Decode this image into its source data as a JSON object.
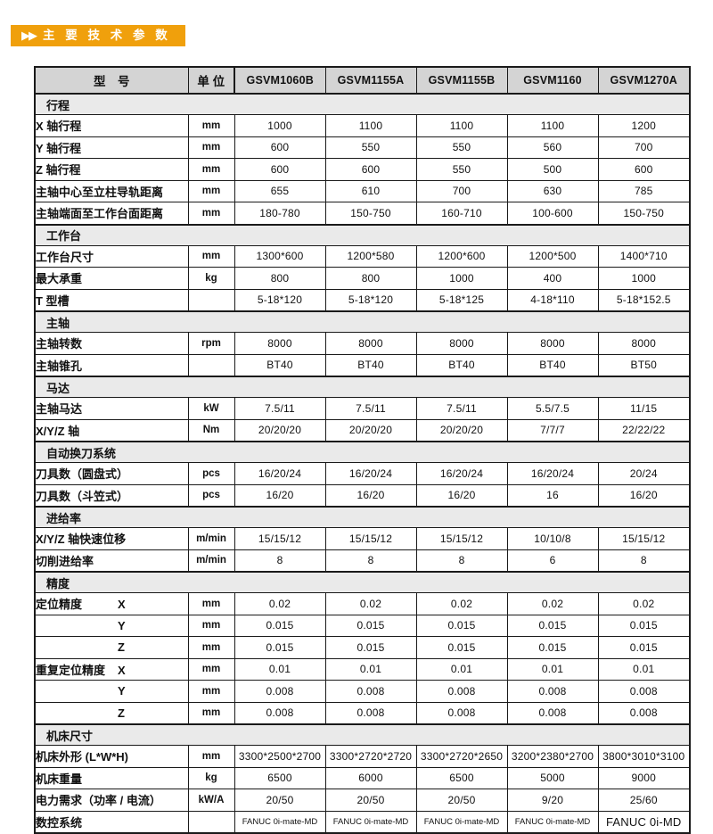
{
  "banner": {
    "arrows": "▶▶",
    "title": "主 要 技 术 参 数"
  },
  "colors": {
    "banner_bg": "#F0A00C",
    "banner_text": "#FFFFFF",
    "header_row_bg": "#D4D4D4",
    "section_row_bg": "#EAEAEA",
    "border": "#1A1A1A"
  },
  "table": {
    "header": {
      "model_label": "型　号",
      "unit_label": "单 位",
      "models": [
        "GSVM1060B",
        "GSVM1155A",
        "GSVM1155B",
        "GSVM1160",
        "GSVM1270A"
      ]
    },
    "sections": [
      {
        "title": "行程",
        "rows": [
          {
            "label": "X 轴行程",
            "unit": "mm",
            "values": [
              "1000",
              "1100",
              "1100",
              "1100",
              "1200"
            ]
          },
          {
            "label": "Y 轴行程",
            "unit": "mm",
            "values": [
              "600",
              "550",
              "550",
              "560",
              "700"
            ]
          },
          {
            "label": "Z 轴行程",
            "unit": "mm",
            "values": [
              "600",
              "600",
              "550",
              "500",
              "600"
            ]
          },
          {
            "label": "主轴中心至立柱导轨距离",
            "unit": "mm",
            "values": [
              "655",
              "610",
              "700",
              "630",
              "785"
            ]
          },
          {
            "label": "主轴端面至工作台面距离",
            "unit": "mm",
            "values": [
              "180-780",
              "150-750",
              "160-710",
              "100-600",
              "150-750"
            ]
          }
        ]
      },
      {
        "title": "工作台",
        "rows": [
          {
            "label": "工作台尺寸",
            "unit": "mm",
            "values": [
              "1300*600",
              "1200*580",
              "1200*600",
              "1200*500",
              "1400*710"
            ]
          },
          {
            "label": "最大承重",
            "unit": "kg",
            "values": [
              "800",
              "800",
              "1000",
              "400",
              "1000"
            ]
          },
          {
            "label": "T 型槽",
            "unit": "",
            "values": [
              "5-18*120",
              "5-18*120",
              "5-18*125",
              "4-18*110",
              "5-18*152.5"
            ]
          }
        ]
      },
      {
        "title": "主轴",
        "rows": [
          {
            "label": "主轴转数",
            "unit": "rpm",
            "values": [
              "8000",
              "8000",
              "8000",
              "8000",
              "8000"
            ]
          },
          {
            "label": "主轴锥孔",
            "unit": "",
            "values": [
              "BT40",
              "BT40",
              "BT40",
              "BT40",
              "BT50"
            ]
          }
        ]
      },
      {
        "title": "马达",
        "rows": [
          {
            "label": "主轴马达",
            "unit": "kW",
            "values": [
              "7.5/11",
              "7.5/11",
              "7.5/11",
              "5.5/7.5",
              "11/15"
            ]
          },
          {
            "label": "X/Y/Z 轴",
            "unit": "Nm",
            "values": [
              "20/20/20",
              "20/20/20",
              "20/20/20",
              "7/7/7",
              "22/22/22"
            ]
          }
        ]
      },
      {
        "title": "自动换刀系统",
        "rows": [
          {
            "label": "刀具数（圆盘式）",
            "unit": "pcs",
            "values": [
              "16/20/24",
              "16/20/24",
              "16/20/24",
              "16/20/24",
              "20/24"
            ]
          },
          {
            "label": "刀具数（斗笠式）",
            "unit": "pcs",
            "values": [
              "16/20",
              "16/20",
              "16/20",
              "16",
              "16/20"
            ]
          }
        ]
      },
      {
        "title": "进给率",
        "rows": [
          {
            "label": "X/Y/Z 轴快速位移",
            "unit": "m/min",
            "values": [
              "15/15/12",
              "15/15/12",
              "15/15/12",
              "10/10/8",
              "15/15/12"
            ]
          },
          {
            "label": "切削进给率",
            "unit": "m/min",
            "values": [
              "8",
              "8",
              "8",
              "6",
              "8"
            ]
          }
        ]
      },
      {
        "title": "精度",
        "rows": [
          {
            "label": "定位精度",
            "axis": "X",
            "unit": "mm",
            "values": [
              "0.02",
              "0.02",
              "0.02",
              "0.02",
              "0.02"
            ]
          },
          {
            "label": "",
            "axis": "Y",
            "unit": "mm",
            "values": [
              "0.015",
              "0.015",
              "0.015",
              "0.015",
              "0.015"
            ]
          },
          {
            "label": "",
            "axis": "Z",
            "unit": "mm",
            "values": [
              "0.015",
              "0.015",
              "0.015",
              "0.015",
              "0.015"
            ]
          },
          {
            "label": "重复定位精度",
            "axis": "X",
            "unit": "mm",
            "values": [
              "0.01",
              "0.01",
              "0.01",
              "0.01",
              "0.01"
            ]
          },
          {
            "label": "",
            "axis": "Y",
            "unit": "mm",
            "values": [
              "0.008",
              "0.008",
              "0.008",
              "0.008",
              "0.008"
            ]
          },
          {
            "label": "",
            "axis": "Z",
            "unit": "mm",
            "values": [
              "0.008",
              "0.008",
              "0.008",
              "0.008",
              "0.008"
            ]
          }
        ]
      },
      {
        "title": "机床尺寸",
        "rows": [
          {
            "label": "机床外形 (L*W*H)",
            "unit": "mm",
            "values": [
              "3300*2500*2700",
              "3300*2720*2720",
              "3300*2720*2650",
              "3200*2380*2700",
              "3800*3010*3100"
            ]
          },
          {
            "label": "机床重量",
            "unit": "kg",
            "values": [
              "6500",
              "6000",
              "6500",
              "5000",
              "9000"
            ]
          },
          {
            "label": "电力需求（功率 / 电流）",
            "unit": "kW/A",
            "values": [
              "20/50",
              "20/50",
              "20/50",
              "9/20",
              "25/60"
            ]
          },
          {
            "label": "数控系统",
            "unit": "",
            "values": [
              "FANUC 0i-mate-MD",
              "FANUC 0i-mate-MD",
              "FANUC 0i-mate-MD",
              "FANUC 0i-mate-MD",
              "FANUC 0i-MD"
            ],
            "value_sizes": [
              "s",
              "s",
              "s",
              "s",
              "l"
            ]
          }
        ]
      }
    ]
  }
}
